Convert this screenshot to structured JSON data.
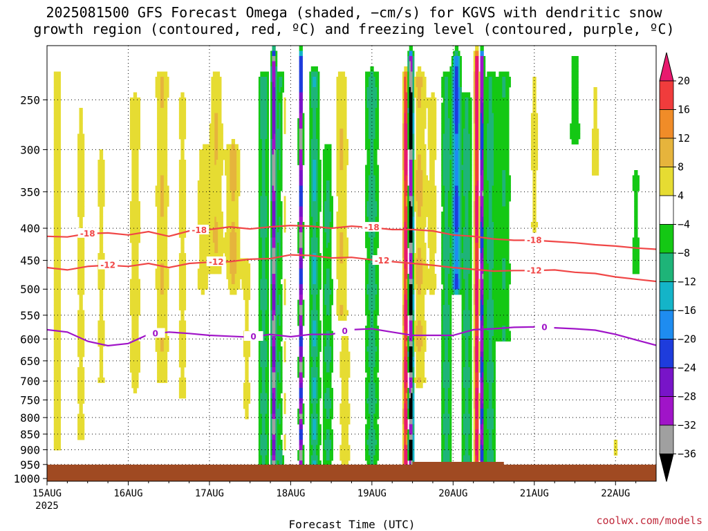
{
  "title_line1": "2025081500 GFS Forecast Omega (shaded, −cm/s) for KGVS with dendritic snow",
  "title_line2": "growth region (contoured, red, ºC) and freezing level (contoured, purple, ºC)",
  "credit": "coolwx.com/models",
  "chart_data": {
    "type": "heatmap",
    "title": "2025081500 GFS Forecast Omega (shaded, −cm/s) for KGVS with dendritic snow growth region (contoured, red, ºC) and freezing level (contoured, purple, ºC)",
    "xlabel": "Forecast Time (UTC)",
    "ylabel": "",
    "x_range": [
      "2025-08-15T00Z",
      "2025-08-22T12Z"
    ],
    "x_ticks": [
      "15AUG",
      "16AUG",
      "17AUG",
      "18AUG",
      "19AUG",
      "20AUG",
      "21AUG",
      "22AUG"
    ],
    "x_year": "2025",
    "y_axis": {
      "scale": "log",
      "reversed": true,
      "range": [
        1010,
        205
      ],
      "ticks": [
        250,
        300,
        350,
        400,
        450,
        500,
        550,
        600,
        650,
        700,
        750,
        800,
        850,
        900,
        950,
        1000
      ]
    },
    "grid": "dotted",
    "colorbar": {
      "labels": [
        "20",
        "16",
        "12",
        "8",
        "4",
        "−4",
        "−8",
        "−12",
        "−16",
        "−20",
        "−24",
        "−28",
        "−32",
        "−36"
      ],
      "bins": [
        {
          "min": 20,
          "color": "#e8196e"
        },
        {
          "min": 16,
          "max": 20,
          "color": "#f03c3c"
        },
        {
          "min": 12,
          "max": 16,
          "color": "#f08c28"
        },
        {
          "min": 8,
          "max": 12,
          "color": "#e6b43c"
        },
        {
          "min": 4,
          "max": 8,
          "color": "#e6dc32"
        },
        {
          "min": -4,
          "max": 4,
          "color": "#ffffff"
        },
        {
          "min": -8,
          "max": -4,
          "color": "#14c814"
        },
        {
          "min": -12,
          "max": -8,
          "color": "#1eb478"
        },
        {
          "min": -16,
          "max": -12,
          "color": "#14b4c8"
        },
        {
          "min": -20,
          "max": -16,
          "color": "#1e8cf0"
        },
        {
          "min": -24,
          "max": -20,
          "color": "#1e3cdc"
        },
        {
          "min": -28,
          "max": -24,
          "color": "#7814c8"
        },
        {
          "min": -32,
          "max": -28,
          "color": "#a014c8"
        },
        {
          "min": -36,
          "max": -32,
          "color": "#a0a0a0"
        },
        {
          "max": -36,
          "color": "#000000"
        }
      ]
    },
    "omega_bands": [
      {
        "t_hours": 3,
        "sign": 1,
        "amp": 8,
        "width_h": 1.5,
        "p_top": 230,
        "p_bot": 900
      },
      {
        "t_hours": 10,
        "sign": 1,
        "amp": 7,
        "width_h": 1.5,
        "p_top": 260,
        "p_bot": 860
      },
      {
        "t_hours": 16,
        "sign": 1,
        "amp": 6,
        "width_h": 1.5,
        "p_top": 300,
        "p_bot": 700
      },
      {
        "t_hours": 26,
        "sign": 1,
        "amp": 7,
        "width_h": 2,
        "p_top": 250,
        "p_bot": 720
      },
      {
        "t_hours": 34,
        "sign": 1,
        "amp": 9,
        "width_h": 2,
        "p_top": 230,
        "p_bot": 700
      },
      {
        "t_hours": 40,
        "sign": 1,
        "amp": 7,
        "width_h": 1.5,
        "p_top": 250,
        "p_bot": 740
      },
      {
        "t_hours": 46,
        "sign": 1,
        "amp": 7,
        "width_h": 2,
        "p_top": 300,
        "p_bot": 500
      },
      {
        "t_hours": 50,
        "sign": 1,
        "amp": 9,
        "width_h": 2,
        "p_top": 230,
        "p_bot": 470
      },
      {
        "t_hours": 55,
        "sign": 1,
        "amp": 11,
        "width_h": 2,
        "p_top": 300,
        "p_bot": 500
      },
      {
        "t_hours": 59,
        "sign": 1,
        "amp": 6,
        "width_h": 1.5,
        "p_top": 450,
        "p_bot": 800
      },
      {
        "t_hours": 64,
        "sign": -1,
        "amp": 12,
        "width_h": 1.5,
        "p_top": 230,
        "p_bot": 960
      },
      {
        "t_hours": 67,
        "sign": -1,
        "amp": 40,
        "width_h": 0.6,
        "p_top": 215,
        "p_bot": 960
      },
      {
        "t_hours": 69,
        "sign": -1,
        "amp": 12,
        "width_h": 1.2,
        "p_top": 230,
        "p_bot": 950
      },
      {
        "t_hours": 70,
        "sign": 1,
        "amp": 9,
        "width_h": 1,
        "p_top": 250,
        "p_bot": 900
      },
      {
        "t_hours": 75,
        "sign": -1,
        "amp": 42,
        "width_h": 0.5,
        "p_top": 215,
        "p_bot": 960
      },
      {
        "t_hours": 79,
        "sign": -1,
        "amp": 14,
        "width_h": 1.5,
        "p_top": 230,
        "p_bot": 950
      },
      {
        "t_hours": 83,
        "sign": -1,
        "amp": 11,
        "width_h": 1.5,
        "p_top": 300,
        "p_bot": 960
      },
      {
        "t_hours": 87,
        "sign": 1,
        "amp": 9,
        "width_h": 2,
        "p_top": 230,
        "p_bot": 550
      },
      {
        "t_hours": 88,
        "sign": 1,
        "amp": 7,
        "width_h": 2,
        "p_top": 600,
        "p_bot": 960
      },
      {
        "t_hours": 96,
        "sign": -1,
        "amp": 12,
        "width_h": 2,
        "p_top": 230,
        "p_bot": 960
      },
      {
        "t_hours": 106,
        "sign": 1,
        "amp": 28,
        "width_h": 0.7,
        "p_top": 230,
        "p_bot": 960
      },
      {
        "t_hours": 107.5,
        "sign": -1,
        "amp": 50,
        "width_h": 0.7,
        "p_top": 215,
        "p_bot": 960
      },
      {
        "t_hours": 110,
        "sign": 1,
        "amp": 10,
        "width_h": 2,
        "p_top": 230,
        "p_bot": 700
      },
      {
        "t_hours": 114,
        "sign": 1,
        "amp": 7,
        "width_h": 1.5,
        "p_top": 250,
        "p_bot": 500
      },
      {
        "t_hours": 118,
        "sign": -1,
        "amp": 12,
        "width_h": 1.5,
        "p_top": 230,
        "p_bot": 960
      },
      {
        "t_hours": 121,
        "sign": -1,
        "amp": 24,
        "width_h": 1.2,
        "p_top": 215,
        "p_bot": 500
      },
      {
        "t_hours": 124,
        "sign": -1,
        "amp": 12,
        "width_h": 1.5,
        "p_top": 250,
        "p_bot": 950
      },
      {
        "t_hours": 127,
        "sign": 1,
        "amp": 30,
        "width_h": 0.7,
        "p_top": 215,
        "p_bot": 960
      },
      {
        "t_hours": 128.5,
        "sign": -1,
        "amp": 40,
        "width_h": 0.5,
        "p_top": 215,
        "p_bot": 960
      },
      {
        "t_hours": 131,
        "sign": -1,
        "amp": 12,
        "width_h": 1.5,
        "p_top": 230,
        "p_bot": 960
      },
      {
        "t_hours": 135,
        "sign": -1,
        "amp": 9,
        "width_h": 2,
        "p_top": 230,
        "p_bot": 600
      },
      {
        "t_hours": 144,
        "sign": 1,
        "amp": 6,
        "width_h": 1.5,
        "p_top": 230,
        "p_bot": 400
      },
      {
        "t_hours": 156,
        "sign": -1,
        "amp": 7,
        "width_h": 2,
        "p_top": 215,
        "p_bot": 290
      },
      {
        "t_hours": 162,
        "sign": 1,
        "amp": 6,
        "width_h": 1.5,
        "p_top": 240,
        "p_bot": 330
      },
      {
        "t_hours": 168,
        "sign": 1,
        "amp": 6,
        "width_h": 1.5,
        "p_top": 870,
        "p_bot": 910
      },
      {
        "t_hours": 174,
        "sign": -1,
        "amp": 6,
        "width_h": 1.5,
        "p_top": 330,
        "p_bot": 470
      }
    ],
    "contours": [
      {
        "value": -18,
        "label": "-18",
        "color": "#f04646",
        "label_t_hours": [
          12,
          45,
          96,
          144
        ],
        "points": [
          [
            0,
            412
          ],
          [
            6,
            413
          ],
          [
            12,
            408
          ],
          [
            18,
            407
          ],
          [
            24,
            410
          ],
          [
            30,
            405
          ],
          [
            36,
            412
          ],
          [
            42,
            404
          ],
          [
            48,
            402
          ],
          [
            54,
            398
          ],
          [
            60,
            401
          ],
          [
            66,
            398
          ],
          [
            72,
            396
          ],
          [
            78,
            397
          ],
          [
            84,
            400
          ],
          [
            90,
            397
          ],
          [
            96,
            399
          ],
          [
            102,
            402
          ],
          [
            108,
            402
          ],
          [
            114,
            404
          ],
          [
            120,
            410
          ],
          [
            126,
            412
          ],
          [
            132,
            416
          ],
          [
            138,
            418
          ],
          [
            144,
            418
          ],
          [
            150,
            420
          ],
          [
            156,
            422
          ],
          [
            162,
            425
          ],
          [
            168,
            427
          ],
          [
            174,
            430
          ],
          [
            180,
            432
          ]
        ]
      },
      {
        "value": -12,
        "label": "-12",
        "color": "#f04646",
        "label_t_hours": [
          18,
          50,
          99,
          144
        ],
        "points": [
          [
            0,
            462
          ],
          [
            6,
            466
          ],
          [
            12,
            460
          ],
          [
            18,
            458
          ],
          [
            24,
            460
          ],
          [
            30,
            455
          ],
          [
            36,
            462
          ],
          [
            42,
            455
          ],
          [
            48,
            453
          ],
          [
            54,
            452
          ],
          [
            60,
            448
          ],
          [
            66,
            447
          ],
          [
            72,
            441
          ],
          [
            78,
            442
          ],
          [
            84,
            446
          ],
          [
            90,
            445
          ],
          [
            96,
            449
          ],
          [
            102,
            452
          ],
          [
            108,
            455
          ],
          [
            114,
            458
          ],
          [
            120,
            462
          ],
          [
            126,
            465
          ],
          [
            132,
            468
          ],
          [
            138,
            467
          ],
          [
            144,
            467
          ],
          [
            150,
            466
          ],
          [
            156,
            470
          ],
          [
            162,
            472
          ],
          [
            168,
            478
          ],
          [
            174,
            482
          ],
          [
            180,
            486
          ]
        ]
      },
      {
        "value": 0,
        "label": "0",
        "color": "#a014c8",
        "label_t_hours": [
          32,
          61,
          88,
          147
        ],
        "points": [
          [
            0,
            580
          ],
          [
            6,
            585
          ],
          [
            12,
            605
          ],
          [
            18,
            615
          ],
          [
            24,
            610
          ],
          [
            30,
            590
          ],
          [
            36,
            585
          ],
          [
            42,
            588
          ],
          [
            48,
            592
          ],
          [
            54,
            594
          ],
          [
            60,
            596
          ],
          [
            66,
            590
          ],
          [
            72,
            595
          ],
          [
            78,
            590
          ],
          [
            84,
            590
          ],
          [
            90,
            580
          ],
          [
            96,
            578
          ],
          [
            102,
            585
          ],
          [
            108,
            592
          ],
          [
            114,
            592
          ],
          [
            120,
            592
          ],
          [
            126,
            580
          ],
          [
            132,
            578
          ],
          [
            138,
            575
          ],
          [
            144,
            574
          ],
          [
            150,
            576
          ],
          [
            156,
            578
          ],
          [
            162,
            581
          ],
          [
            168,
            590
          ],
          [
            174,
            602
          ],
          [
            180,
            614
          ]
        ]
      }
    ]
  }
}
